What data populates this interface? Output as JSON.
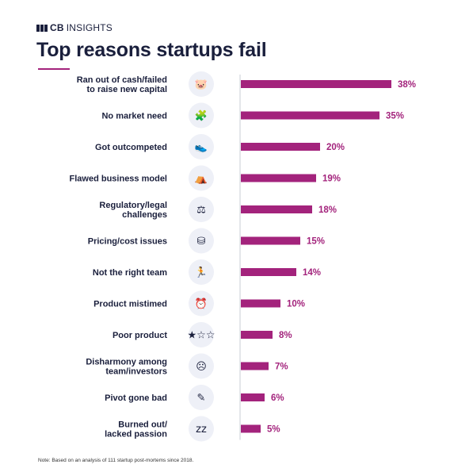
{
  "brand": {
    "bold": "CB",
    "rest": "INSIGHTS"
  },
  "title": "Top reasons startups fail",
  "footnote": "Note: Based on an analysis of 111 startup post-mortems since 2018.",
  "colors": {
    "bar": "#a3237c",
    "text": "#1a1f3c",
    "icon_bg": "#eef0f7",
    "axis": "#c9ccd6"
  },
  "chart_data": {
    "type": "bar",
    "orientation": "horizontal",
    "title": "Top reasons startups fail",
    "xlabel": "",
    "ylabel": "",
    "unit": "%",
    "xlim": [
      0,
      38
    ],
    "grid": false,
    "categories": [
      [
        "Ran out of cash/failed",
        "to raise new capital"
      ],
      [
        "No market need"
      ],
      [
        "Got outcompeted"
      ],
      [
        "Flawed business model"
      ],
      [
        "Regulatory/legal",
        "challenges"
      ],
      [
        "Pricing/cost issues"
      ],
      [
        "Not the right team"
      ],
      [
        "Product mistimed"
      ],
      [
        "Poor product"
      ],
      [
        "Disharmony among",
        "team/investors"
      ],
      [
        "Pivot gone bad"
      ],
      [
        "Burned out/",
        "lacked passion"
      ]
    ],
    "values": [
      38,
      35,
      20,
      19,
      18,
      15,
      14,
      10,
      8,
      7,
      6,
      5
    ],
    "value_labels": [
      "38%",
      "35%",
      "20%",
      "19%",
      "18%",
      "15%",
      "14%",
      "10%",
      "8%",
      "7%",
      "6%",
      "5%"
    ],
    "icons": [
      "piggy-bank-hammer-icon",
      "puzzle-icon",
      "running-shoe-icon",
      "tent-icon",
      "gavel-icon",
      "coin-stack-icon",
      "running-person-icon",
      "alarm-clock-icon",
      "stars-rating-icon",
      "head-hand-icon",
      "feather-pen-icon",
      "sleep-zzz-icon"
    ],
    "icon_glyphs": [
      "🐷",
      "🧩",
      "👟",
      "⛺",
      "⚖",
      "⛁",
      "🏃",
      "⏰",
      "★☆☆",
      "☹",
      "✎",
      "zz"
    ]
  }
}
